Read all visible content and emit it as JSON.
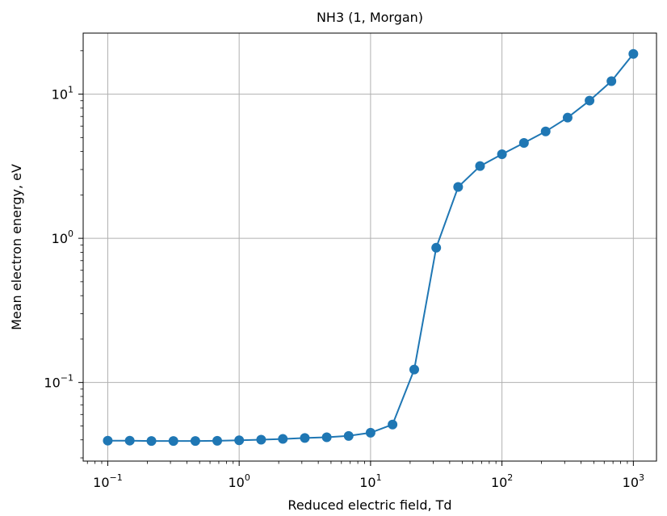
{
  "chart_data": {
    "type": "line",
    "title": "NH3 (1, Morgan)",
    "xlabel": "Reduced electric field, Td",
    "ylabel": "Mean electron energy, eV",
    "xscale": "log",
    "yscale": "log",
    "xlim": [
      0.065,
      1500
    ],
    "ylim": [
      0.0285,
      26.5
    ],
    "grid": true,
    "marker": "circle",
    "line_color": "#1f77b4",
    "x_ticks": [
      {
        "base": "10",
        "exp": "−1",
        "value": 0.1
      },
      {
        "base": "10",
        "exp": "0",
        "value": 1
      },
      {
        "base": "10",
        "exp": "1",
        "value": 10
      },
      {
        "base": "10",
        "exp": "2",
        "value": 100
      },
      {
        "base": "10",
        "exp": "3",
        "value": 1000
      }
    ],
    "y_ticks": [
      {
        "base": "10",
        "exp": "−1",
        "value": 0.1
      },
      {
        "base": "10",
        "exp": "0",
        "value": 1
      },
      {
        "base": "10",
        "exp": "1",
        "value": 10
      }
    ],
    "series": [
      {
        "x": [
          0.1,
          0.147,
          0.215,
          0.316,
          0.464,
          0.681,
          1.0,
          1.47,
          2.15,
          3.16,
          4.64,
          6.81,
          10.0,
          14.7,
          21.5,
          31.6,
          46.4,
          68.1,
          100,
          147,
          215,
          316,
          464,
          681,
          1000
        ],
        "y": [
          0.0395,
          0.0395,
          0.0393,
          0.0393,
          0.0393,
          0.0394,
          0.0397,
          0.0401,
          0.0406,
          0.0412,
          0.0417,
          0.0426,
          0.0448,
          0.0511,
          0.123,
          0.86,
          2.27,
          3.17,
          3.83,
          4.59,
          5.51,
          6.87,
          9.02,
          12.3,
          19.0
        ]
      }
    ]
  }
}
